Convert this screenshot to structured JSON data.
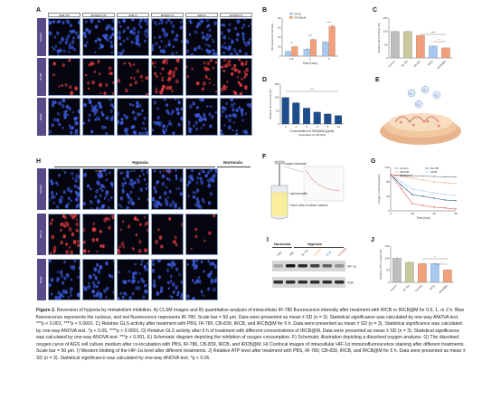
{
  "panels": {
    "A": {
      "letter": "A",
      "columns": [
        "IRCB 0.5h",
        "IRCB@M 0.5h",
        "IRCB 1h",
        "IRCB@M 1h",
        "IRCB 2h",
        "IRCB@M 2h"
      ],
      "rows": [
        "Hoechst",
        "IR-780",
        "Merge"
      ]
    },
    "B": {
      "letter": "B",
      "chart_data": {
        "type": "bar",
        "categories": [
          "0.5",
          "1",
          "2"
        ],
        "series": [
          {
            "name": "IRCB",
            "values": [
              10,
              15,
              30
            ]
          },
          {
            "name": "IRCB@M",
            "values": [
              20,
              35,
              63
            ]
          }
        ],
        "errors": [
          [
            2,
            2,
            3
          ],
          [
            2,
            3,
            4
          ]
        ],
        "xlabel": "Time (Hour)",
        "ylabel": "Fluorescence Intensity",
        "ylim": [
          0,
          80
        ],
        "yticks": [
          "0",
          "20",
          "40",
          "60",
          "80"
        ],
        "significance": [
          "***",
          "****",
          "****"
        ],
        "colors": [
          "#a8c8f0",
          "#f2a07b"
        ]
      }
    },
    "C": {
      "letter": "C",
      "chart_data": {
        "type": "bar",
        "categories": [
          "Control",
          "IR-780",
          "CB-839",
          "IRCB",
          "IRCB@M"
        ],
        "values": [
          100,
          100,
          85,
          45,
          38
        ],
        "errors": [
          3,
          3,
          3,
          3,
          3
        ],
        "ylabel": "Relative GLS Activity (%)",
        "ylim": [
          0,
          150
        ],
        "yticks": [
          "0",
          "50",
          "100",
          "150"
        ],
        "significance": [
          "****",
          "*"
        ],
        "colors": [
          "#bdbdbd",
          "#c9c9a0",
          "#f2a07b",
          "#a8c8f0",
          "#f2a07b"
        ]
      }
    },
    "D": {
      "letter": "D",
      "chart_data": {
        "type": "bar",
        "categories": [
          "0",
          "2",
          "4",
          "6",
          "8",
          "10"
        ],
        "values": [
          100,
          80,
          60,
          45,
          38,
          32
        ],
        "errors": [
          4,
          3,
          3,
          3,
          2,
          2
        ],
        "xlabel": "Concentration of IRCB@M (μg/ml)",
        "xlabel2": "(calculated as CB-839)",
        "ylabel": "Relative GLS Activity (%)",
        "ylim": [
          0,
          150
        ],
        "yticks": [
          "0",
          "50",
          "100",
          "150"
        ],
        "significance": [
          "***"
        ],
        "color": "#1f4e8c"
      }
    },
    "E": {
      "letter": "E",
      "labels": [
        "O₂",
        "O₂",
        "O₂",
        "O₂"
      ]
    },
    "F": {
      "letter": "F",
      "labels": [
        "Oxygen electrode",
        "Liquid paraffin",
        "Tumor cells in culture medium"
      ]
    },
    "G": {
      "letter": "G",
      "chart_data": {
        "type": "line",
        "x": [
          0,
          10,
          20,
          30,
          40,
          50,
          60
        ],
        "series": [
          {
            "name": "Control",
            "values": [
              100,
              98,
              97,
              96,
              95,
              94,
              93
            ]
          },
          {
            "name": "IR-780",
            "values": [
              100,
              70,
              45,
              40,
              35,
              30,
              28
            ]
          },
          {
            "name": "CB-839",
            "values": [
              100,
              95,
              90,
              85,
              80,
              78,
              75
            ]
          },
          {
            "name": "IRCB",
            "values": [
              100,
              80,
              60,
              55,
              50,
              45,
              42
            ]
          },
          {
            "name": "IRCB@M",
            "values": [
              100,
              60,
              20,
              15,
              10,
              8,
              5
            ]
          }
        ],
        "xlabel": "Time (min)",
        "ylabel": "Oxygen content (μmol/L)",
        "ylim": [
          0,
          120
        ],
        "xlim": [
          0,
          60
        ],
        "yticks": [
          "0",
          "40",
          "80",
          "120"
        ],
        "xticks": [
          "0",
          "20",
          "40",
          "60"
        ],
        "colors": [
          "#777777",
          "#1f4e8c",
          "#f2a07b",
          "#a8c8f0",
          "#e05050"
        ]
      }
    },
    "H": {
      "letter": "H",
      "group1": "Hypoxia",
      "group2": "Normoxia",
      "columns": [
        "PBS",
        "CB-839",
        "IRCB",
        "IRCB@M",
        "PBS"
      ],
      "column_colors": [
        "#333333",
        "#e38a2e",
        "#3a78c6",
        "#c23a2e",
        "#333333"
      ],
      "rows": [
        "Hoechst",
        "HIF-1α",
        "Merge"
      ]
    },
    "I": {
      "letter": "I",
      "group1": "Normoxia",
      "group2": "Hypoxia",
      "lanes": [
        "PBS",
        "PBS",
        "IR-780",
        "CB-839",
        "IRCB",
        "IRCB@M"
      ],
      "lane_colors": [
        "#333333",
        "#333333",
        "#333333",
        "#e38a2e",
        "#3a78c6",
        "#c23a2e"
      ],
      "bands": [
        "HIF-1α",
        "Actin"
      ]
    },
    "J": {
      "letter": "J",
      "chart_data": {
        "type": "bar",
        "categories": [
          "Control",
          "IR-780",
          "CB-839",
          "IRCB",
          "IRCB@M"
        ],
        "values": [
          100,
          83,
          78,
          78,
          52
        ],
        "errors": [
          6,
          4,
          4,
          4,
          4
        ],
        "ylabel": "Relative ATP content (%)",
        "ylim": [
          0,
          150
        ],
        "yticks": [
          "0",
          "50",
          "100",
          "150"
        ],
        "significance": [
          "*",
          "*"
        ],
        "colors": [
          "#bdbdbd",
          "#c9c9a0",
          "#f2a07b",
          "#a8c8f0",
          "#f2a07b"
        ]
      }
    }
  },
  "caption": {
    "lead": "Figure 2.",
    "text": "  Reversion of hypoxia by metabolism inhibition. A) CLSM images and B) quantitative analysis of intracellular IR-780 fluorescence intensity after treatment with IRCB or IRCB@M for 0.5, 1, or 2 h. Blue fluorescence represents the nucleus, and red fluorescence represents IR-780. Scale bar = 50 μm. Data were presented as mean ± SD (n = 3). Statistical significance was calculated by one-way ANOVA test. ***p < 0.001, ****p < 0.0001. C) Relative GLS activity after treatment with PBS, IR-780, CB-839, IRCB, and IRCB@M for 6 h. Data were presented as mean ± SD (n = 3). Statistical significance was calculated by one-way ANOVA test. *p < 0.05, ****p < 0.0001. D) Relative GLS activity after 6 h of treatment with different concentrations of IRCB@M. Data were presented as mean ± SD (n = 3). Statistical significance was calculated by one-way ANOVA test. ***p < 0.001. E) Schematic diagram depicting the inhibition of oxygen consumption. F) Schematic illustration depicting a dissolved oxygen analyzer. G) The dissolved oxygen curve of AGS cell culture medium after co-incubation with PBS, IR-780, CB-839, IRCB, and IRCB@M. H) Confocal images of intracellular HIF-1α immunofluorescence staining after different treatments. Scale bar = 50 μm. I) Western blotting of the HIF-1α level after different treatments. J) Relative ATP level after treatment with PBS, IR-780, CB-839, IRCB, and IRCB@M for 6 h. Data were presented as mean ± SD (n = 3). Statistical significance was calculated by one-way ANOVA test. *p < 0.05."
  }
}
